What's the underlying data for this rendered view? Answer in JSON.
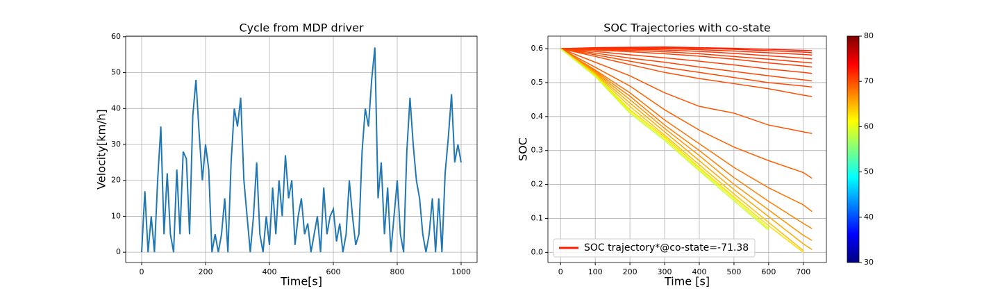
{
  "chart_data": [
    {
      "type": "line",
      "title": "Cycle from MDP driver",
      "xlabel": "Time[s]",
      "ylabel": "Velocity[km/h]",
      "x": [
        0,
        10,
        20,
        30,
        40,
        50,
        60,
        70,
        80,
        90,
        100,
        110,
        120,
        130,
        140,
        150,
        160,
        170,
        180,
        190,
        200,
        210,
        220,
        230,
        240,
        250,
        260,
        270,
        280,
        290,
        300,
        310,
        320,
        330,
        340,
        350,
        360,
        370,
        380,
        390,
        400,
        410,
        420,
        430,
        440,
        450,
        460,
        470,
        480,
        490,
        500,
        510,
        520,
        530,
        540,
        550,
        560,
        570,
        580,
        590,
        600,
        610,
        620,
        630,
        640,
        650,
        660,
        670,
        680,
        690,
        700,
        710,
        720,
        730,
        740,
        750,
        760,
        770,
        780,
        790,
        800,
        810,
        820,
        830,
        840,
        850,
        860,
        870,
        880,
        890,
        900,
        910,
        920,
        930,
        940,
        950,
        960,
        970,
        980,
        990,
        1000
      ],
      "values": [
        0,
        17,
        0,
        10,
        0,
        20,
        35,
        5,
        22,
        5,
        0,
        23,
        5,
        28,
        26,
        5,
        38,
        48,
        33,
        20,
        30,
        23,
        0,
        5,
        0,
        5,
        15,
        0,
        25,
        40,
        35,
        43,
        20,
        10,
        0,
        10,
        25,
        5,
        0,
        10,
        2,
        18,
        5,
        20,
        10,
        27,
        15,
        20,
        2,
        10,
        15,
        5,
        8,
        0,
        5,
        10,
        0,
        18,
        5,
        10,
        12,
        3,
        8,
        0,
        5,
        20,
        10,
        2,
        5,
        28,
        40,
        35,
        48,
        57,
        15,
        25,
        5,
        18,
        0,
        10,
        20,
        5,
        0,
        28,
        43,
        30,
        20,
        15,
        5,
        0,
        5,
        15,
        0,
        15,
        0,
        22,
        32,
        44,
        25,
        30,
        25
      ],
      "color": "#1f77b4",
      "xlim": [
        -50,
        1050
      ],
      "xticks": [
        0,
        200,
        400,
        600,
        800,
        1000
      ],
      "ylim": [
        -2.87,
        60.17
      ],
      "yticks": [
        0,
        10,
        20,
        30,
        40,
        50,
        60
      ],
      "grid": true
    },
    {
      "type": "multiline",
      "title": "SOC Trajectories with co-state",
      "xlabel": "Time [s]",
      "ylabel": "SOC",
      "x": [
        0,
        100,
        200,
        300,
        400,
        500,
        600,
        700,
        725
      ],
      "series": [
        {
          "name": "SOC trajectory*@co-state=-71.38",
          "color": "#ff1e00",
          "values": [
            0.6,
            0.603,
            0.604,
            0.605,
            0.603,
            0.601,
            0.598,
            0.595,
            0.594
          ]
        },
        {
          "color": "#ff2800",
          "values": [
            0.6,
            0.602,
            0.602,
            0.603,
            0.601,
            0.598,
            0.594,
            0.59,
            0.588
          ]
        },
        {
          "color": "#ff3000",
          "values": [
            0.6,
            0.601,
            0.6,
            0.6,
            0.597,
            0.593,
            0.588,
            0.583,
            0.581
          ]
        },
        {
          "color": "#ff3400",
          "values": [
            0.6,
            0.6,
            0.598,
            0.596,
            0.592,
            0.586,
            0.579,
            0.572,
            0.57
          ]
        },
        {
          "color": "#ff3800",
          "values": [
            0.6,
            0.598,
            0.595,
            0.591,
            0.585,
            0.577,
            0.569,
            0.56,
            0.558
          ]
        },
        {
          "color": "#ff3c00",
          "values": [
            0.6,
            0.596,
            0.591,
            0.585,
            0.578,
            0.569,
            0.558,
            0.549,
            0.546
          ]
        },
        {
          "color": "#ff4000",
          "values": [
            0.6,
            0.592,
            0.582,
            0.573,
            0.563,
            0.552,
            0.54,
            0.53,
            0.527
          ]
        },
        {
          "color": "#ff4400",
          "values": [
            0.6,
            0.587,
            0.572,
            0.56,
            0.546,
            0.533,
            0.52,
            0.508,
            0.505
          ]
        },
        {
          "color": "#ff4800",
          "values": [
            0.6,
            0.582,
            0.563,
            0.545,
            0.53,
            0.515,
            0.5,
            0.49,
            0.487
          ]
        },
        {
          "color": "#ff4c00",
          "values": [
            0.6,
            0.577,
            0.553,
            0.53,
            0.512,
            0.497,
            0.482,
            0.463,
            0.459
          ]
        },
        {
          "color": "#ff5400",
          "values": [
            0.6,
            0.56,
            0.52,
            0.47,
            0.43,
            0.41,
            0.375,
            0.355,
            0.35
          ]
        },
        {
          "color": "#ff6000",
          "values": [
            0.6,
            0.545,
            0.49,
            0.42,
            0.36,
            0.31,
            0.27,
            0.235,
            0.218
          ]
        },
        {
          "color": "#ff7000",
          "values": [
            0.6,
            0.537,
            0.47,
            0.39,
            0.32,
            0.25,
            0.19,
            0.14,
            0.12
          ]
        },
        {
          "color": "#ff8000",
          "values": [
            0.6,
            0.534,
            0.46,
            0.375,
            0.3,
            0.22,
            0.15,
            0.085,
            0.07
          ]
        },
        {
          "color": "#ff9400",
          "values": [
            0.6,
            0.531,
            0.45,
            0.365,
            0.285,
            0.2,
            0.125,
            0.05,
            0.035
          ]
        },
        {
          "color": "#ffa800",
          "values": [
            0.6,
            0.528,
            0.44,
            0.355,
            0.27,
            0.185,
            0.105,
            0.025,
            0.008
          ]
        },
        {
          "color": "#ffc000",
          "values": [
            0.6,
            0.525,
            0.43,
            0.345,
            0.258,
            0.172,
            0.088,
            0.005,
            null
          ]
        },
        {
          "color": "#ffdc00",
          "values": [
            0.6,
            0.522,
            0.42,
            0.34,
            0.25,
            0.163,
            0.078,
            0.0,
            null
          ]
        },
        {
          "color": "#e8ff10",
          "values": [
            0.6,
            0.52,
            0.415,
            0.335,
            0.245,
            0.158,
            0.07,
            null,
            null
          ]
        },
        {
          "color": "#c8ff30",
          "values": [
            0.6,
            0.518,
            0.41,
            0.33,
            0.24,
            0.152,
            0.065,
            null,
            null
          ]
        }
      ],
      "xlim": [
        -36.5,
        766.5
      ],
      "xticks": [
        0,
        100,
        200,
        300,
        400,
        500,
        600,
        700
      ],
      "ylim": [
        -0.03,
        0.637
      ],
      "yticks": [
        {
          "value": 0,
          "label": "0.0"
        },
        0.1,
        0.2,
        0.3,
        0.4,
        0.5,
        0.6
      ],
      "grid": true,
      "legend": "lower left",
      "colorbar": {
        "lim": [
          30,
          80
        ],
        "ticks": [
          30,
          40,
          50,
          60,
          70,
          80
        ]
      }
    }
  ]
}
